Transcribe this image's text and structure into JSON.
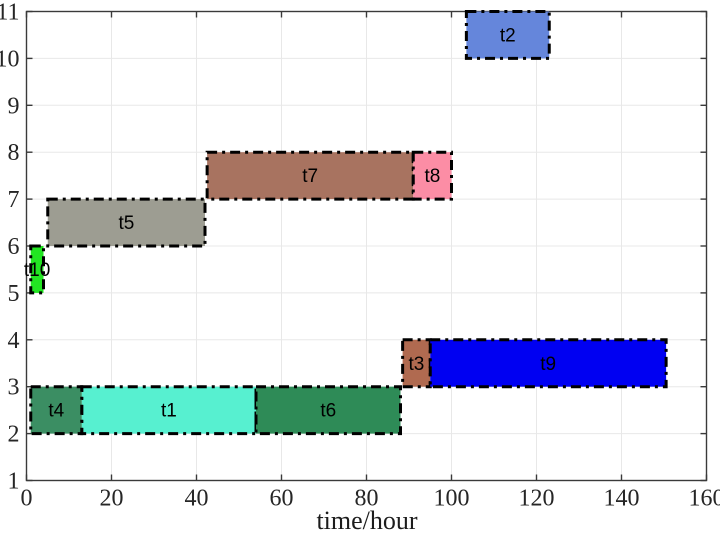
{
  "chart_data": {
    "type": "bar",
    "subtype": "gantt",
    "title": "",
    "xlabel": "time/hour",
    "ylabel": "",
    "xlim": [
      0,
      160
    ],
    "ylim": [
      1,
      11
    ],
    "x_ticks": [
      0,
      20,
      40,
      60,
      80,
      100,
      120,
      140,
      160
    ],
    "y_ticks": [
      1,
      2,
      3,
      4,
      5,
      6,
      7,
      8,
      9,
      10,
      11
    ],
    "grid": true,
    "legend": "none",
    "colors": {
      "grid": "#e8e8e8",
      "axis_box": "#3a3a3a",
      "bar_edge": "#000000",
      "label_text": "#000000"
    },
    "tasks": [
      {
        "label": "t1",
        "row": 2,
        "start": 13,
        "end": 54,
        "color": "#57f0d0"
      },
      {
        "label": "t2",
        "row": 10,
        "start": 103.5,
        "end": 123,
        "color": "#6586db"
      },
      {
        "label": "t3",
        "row": 3,
        "start": 88.5,
        "end": 95,
        "color": "#b06a50"
      },
      {
        "label": "t4",
        "row": 2,
        "start": 1,
        "end": 13,
        "color": "#3b8e63"
      },
      {
        "label": "t5",
        "row": 6,
        "start": 5,
        "end": 42,
        "color": "#9d9d92"
      },
      {
        "label": "t6",
        "row": 2,
        "start": 54,
        "end": 88,
        "color": "#2e8b57"
      },
      {
        "label": "t7",
        "row": 7,
        "start": 42.5,
        "end": 91,
        "color": "#a87360"
      },
      {
        "label": "t8",
        "row": 7,
        "start": 91,
        "end": 100,
        "color": "#fc8da5"
      },
      {
        "label": "t9",
        "row": 3,
        "start": 95,
        "end": 150.5,
        "color": "#0000f2"
      },
      {
        "label": "t10",
        "row": 5,
        "start": 1,
        "end": 4,
        "color": "#22e522"
      }
    ]
  }
}
